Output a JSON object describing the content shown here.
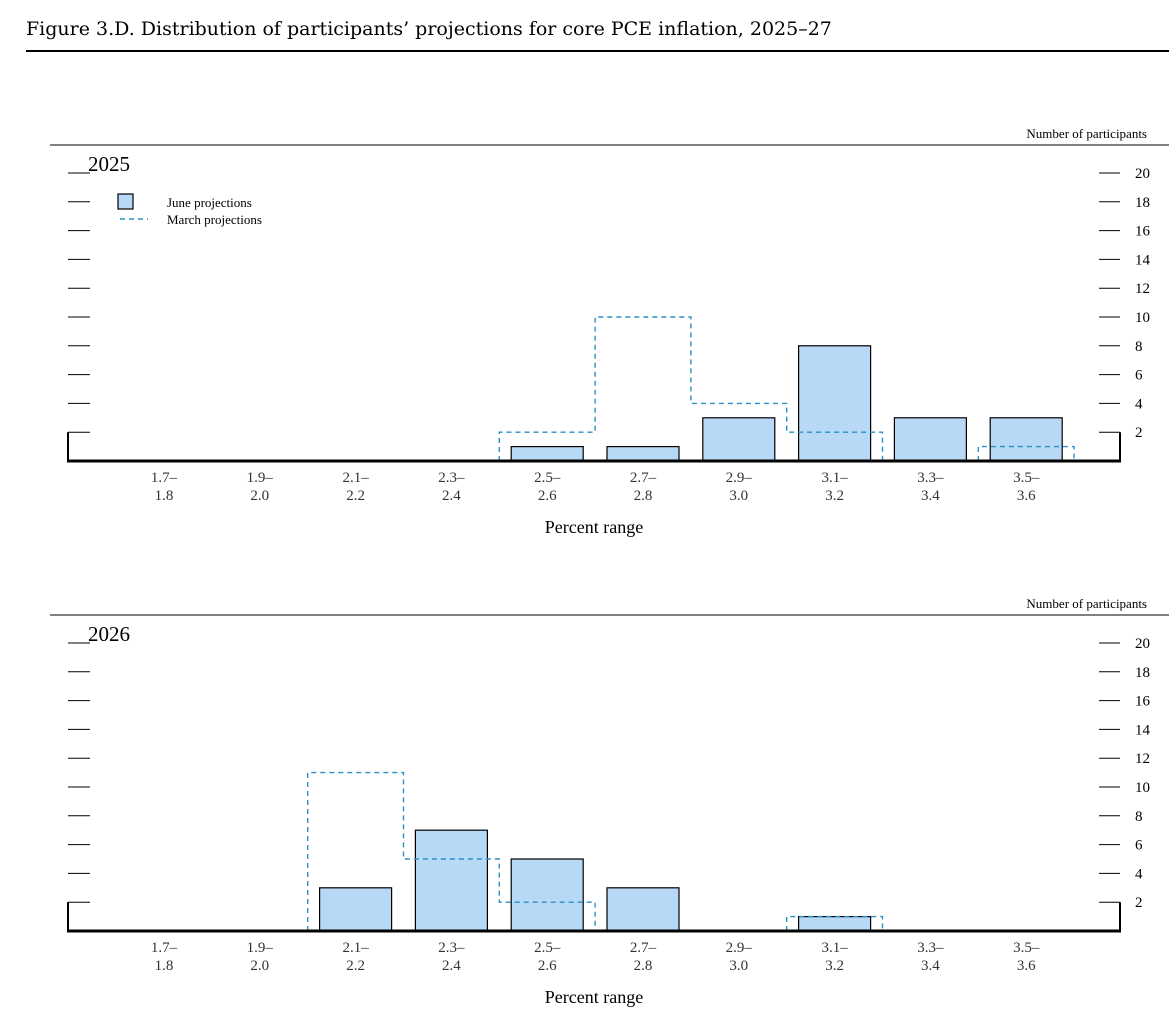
{
  "figure_title": "Figure 3.D. Distribution of participants’ projections for core PCE inflation, 2025–27",
  "legend": {
    "june": "June projections",
    "march": "March projections"
  },
  "colors": {
    "june_fill": "#b7d9f5",
    "march_line": "#2a8fc4",
    "axis": "#000000"
  },
  "chart_data": [
    {
      "type": "bar",
      "title": "2025",
      "ylabel": "Number of participants",
      "xlabel": "Percent range",
      "categories": [
        [
          "1.7–",
          "1.8"
        ],
        [
          "1.9–",
          "2.0"
        ],
        [
          "2.1–",
          "2.2"
        ],
        [
          "2.3–",
          "2.4"
        ],
        [
          "2.5–",
          "2.6"
        ],
        [
          "2.7–",
          "2.8"
        ],
        [
          "2.9–",
          "3.0"
        ],
        [
          "3.1–",
          "3.2"
        ],
        [
          "3.3–",
          "3.4"
        ],
        [
          "3.5–",
          "3.6"
        ]
      ],
      "yticks": [
        2,
        4,
        6,
        8,
        10,
        12,
        14,
        16,
        18,
        20
      ],
      "ylim": [
        0,
        20
      ],
      "series": [
        {
          "name": "June projections",
          "style": "bar",
          "values": [
            0,
            0,
            0,
            0,
            1,
            1,
            3,
            8,
            3,
            3
          ]
        },
        {
          "name": "March projections",
          "style": "dashed-step",
          "values": [
            0,
            0,
            0,
            0,
            2,
            10,
            4,
            2,
            0,
            1
          ]
        }
      ],
      "legend_position": "top-left"
    },
    {
      "type": "bar",
      "title": "2026",
      "ylabel": "Number of participants",
      "xlabel": "Percent range",
      "categories": [
        [
          "1.7–",
          "1.8"
        ],
        [
          "1.9–",
          "2.0"
        ],
        [
          "2.1–",
          "2.2"
        ],
        [
          "2.3–",
          "2.4"
        ],
        [
          "2.5–",
          "2.6"
        ],
        [
          "2.7–",
          "2.8"
        ],
        [
          "2.9–",
          "3.0"
        ],
        [
          "3.1–",
          "3.2"
        ],
        [
          "3.3–",
          "3.4"
        ],
        [
          "3.5–",
          "3.6"
        ]
      ],
      "yticks": [
        2,
        4,
        6,
        8,
        10,
        12,
        14,
        16,
        18,
        20
      ],
      "ylim": [
        0,
        20
      ],
      "series": [
        {
          "name": "June projections",
          "style": "bar",
          "values": [
            0,
            0,
            3,
            7,
            5,
            3,
            0,
            1,
            0,
            0
          ]
        },
        {
          "name": "March projections",
          "style": "dashed-step",
          "values": [
            0,
            0,
            11,
            5,
            2,
            0,
            0,
            1,
            0,
            0
          ]
        }
      ]
    }
  ]
}
